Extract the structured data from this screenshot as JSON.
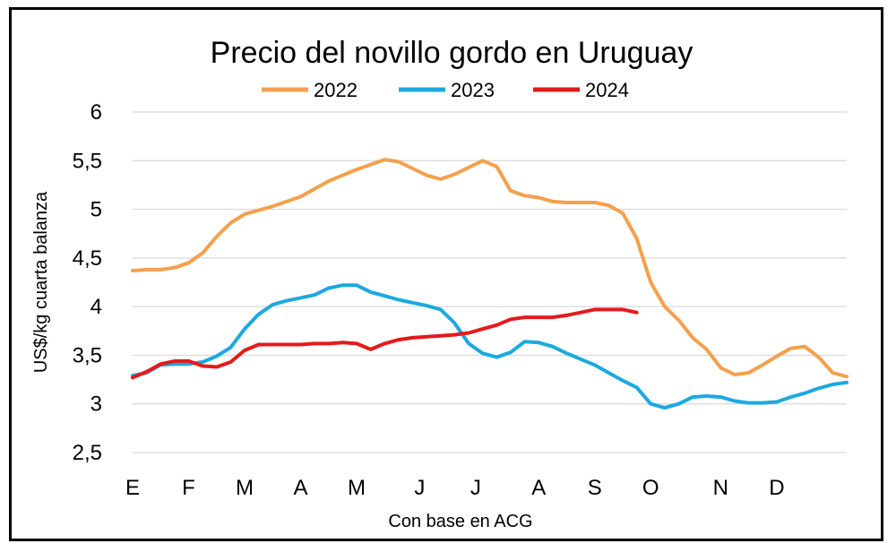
{
  "chart_data": {
    "type": "line",
    "title": "Precio del novillo gordo en Uruguay",
    "xlabel": "Con base en ACG",
    "ylabel": "US$/kg cuarta balanza",
    "ylim": [
      2.5,
      6
    ],
    "yticks": [
      "2,5",
      "3",
      "3,5",
      "4",
      "4,5",
      "5",
      "5,5",
      "6"
    ],
    "ytick_values": [
      2.5,
      3,
      3.5,
      4,
      4.5,
      5,
      5.5,
      6
    ],
    "grid": true,
    "legend_position": "top-center",
    "x_month_labels": [
      {
        "label": "E",
        "pos": 0
      },
      {
        "label": "F",
        "pos": 4
      },
      {
        "label": "M",
        "pos": 8
      },
      {
        "label": "A",
        "pos": 12
      },
      {
        "label": "M",
        "pos": 16
      },
      {
        "label": "J",
        "pos": 20.5
      },
      {
        "label": "J",
        "pos": 24.5
      },
      {
        "label": "A",
        "pos": 29
      },
      {
        "label": "S",
        "pos": 33
      },
      {
        "label": "O",
        "pos": 37
      },
      {
        "label": "N",
        "pos": 42
      },
      {
        "label": "D",
        "pos": 46
      }
    ],
    "x_max": 51,
    "series": [
      {
        "name": "2022",
        "color": "#f5a04d",
        "values": [
          4.37,
          4.38,
          4.38,
          4.4,
          4.45,
          4.55,
          4.72,
          4.86,
          4.95,
          4.99,
          5.03,
          5.08,
          5.13,
          5.21,
          5.29,
          5.35,
          5.41,
          5.46,
          5.51,
          5.49,
          5.42,
          5.35,
          5.31,
          5.36,
          5.43,
          5.5,
          5.44,
          5.19,
          5.14,
          5.12,
          5.08,
          5.07,
          5.07,
          5.07,
          5.04,
          4.96,
          4.7,
          4.25,
          4.0,
          3.86,
          3.68,
          3.56,
          3.37,
          3.3,
          3.32,
          3.4,
          3.49,
          3.57,
          3.59,
          3.48,
          3.32,
          3.28
        ]
      },
      {
        "name": "2023",
        "color": "#1ca9e0",
        "values": [
          3.29,
          3.32,
          3.4,
          3.41,
          3.41,
          3.43,
          3.49,
          3.58,
          3.77,
          3.92,
          4.02,
          4.06,
          4.09,
          4.12,
          4.19,
          4.22,
          4.22,
          4.15,
          4.11,
          4.07,
          4.04,
          4.01,
          3.97,
          3.83,
          3.62,
          3.52,
          3.48,
          3.53,
          3.64,
          3.63,
          3.59,
          3.52,
          3.46,
          3.4,
          3.32,
          3.24,
          3.17,
          3.0,
          2.96,
          3.0,
          3.07,
          3.08,
          3.07,
          3.03,
          3.01,
          3.01,
          3.02,
          3.07,
          3.11,
          3.16,
          3.2,
          3.22
        ]
      },
      {
        "name": "2024",
        "color": "#e41a1c",
        "values": [
          3.27,
          3.33,
          3.41,
          3.44,
          3.44,
          3.39,
          3.38,
          3.43,
          3.55,
          3.61,
          3.61,
          3.61,
          3.61,
          3.62,
          3.62,
          3.63,
          3.62,
          3.56,
          3.62,
          3.66,
          3.68,
          3.69,
          3.7,
          3.71,
          3.73,
          3.77,
          3.81,
          3.87,
          3.89,
          3.89,
          3.89,
          3.91,
          3.94,
          3.97,
          3.97,
          3.97,
          3.94
        ]
      }
    ]
  }
}
